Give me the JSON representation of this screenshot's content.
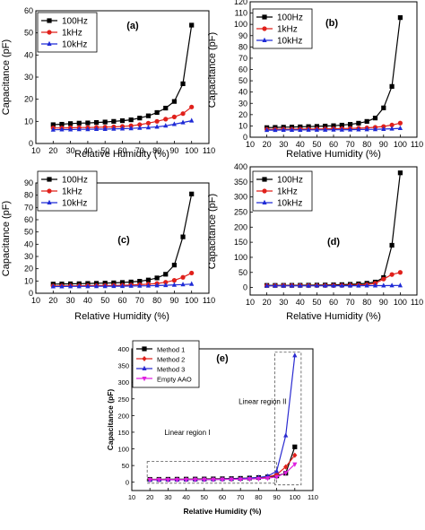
{
  "colors": {
    "100Hz": "#000000",
    "1kHz": "#e0201b",
    "10kHz": "#1f2bd6",
    "m1": "#000000",
    "m2": "#e0201b",
    "m3": "#2a2ad0",
    "aao": "#e020e0"
  },
  "chart_data": [
    {
      "id": "a",
      "type": "line",
      "panel_label": "(a)",
      "xlabel": "Relative Humidity (%)",
      "ylabel": "Capacitance (pF)",
      "xlim": [
        10,
        110
      ],
      "ylim": [
        0,
        60
      ],
      "xticks": [
        10,
        20,
        30,
        40,
        50,
        60,
        70,
        80,
        90,
        100,
        110
      ],
      "yticks": [
        0,
        10,
        20,
        30,
        40,
        50,
        60
      ],
      "legend_position": "top-left",
      "x": [
        20,
        25,
        30,
        35,
        40,
        45,
        50,
        55,
        60,
        65,
        70,
        75,
        80,
        85,
        90,
        95,
        100
      ],
      "series": [
        {
          "name": "100Hz",
          "color_key": "100Hz",
          "marker": "square",
          "values": [
            8.5,
            8.7,
            9,
            9.2,
            9.3,
            9.5,
            9.7,
            10,
            10.3,
            10.7,
            11.5,
            12.5,
            14,
            16,
            19,
            27,
            53.5
          ]
        },
        {
          "name": "1kHz",
          "color_key": "1kHz",
          "marker": "circle",
          "values": [
            7,
            7,
            7.1,
            7.2,
            7.2,
            7.3,
            7.4,
            7.5,
            7.7,
            8,
            8.5,
            9.2,
            10,
            11,
            12,
            13.5,
            16.5
          ]
        },
        {
          "name": "10kHz",
          "color_key": "10kHz",
          "marker": "triangle",
          "values": [
            6.2,
            6.3,
            6.3,
            6.4,
            6.4,
            6.5,
            6.5,
            6.6,
            6.7,
            6.8,
            7,
            7.2,
            7.5,
            8,
            8.7,
            9.5,
            10.3
          ]
        }
      ]
    },
    {
      "id": "b",
      "type": "line",
      "panel_label": "(b)",
      "xlabel": "Relative Humidity (%)",
      "ylabel": "Capacitance (pF)",
      "xlim": [
        10,
        110
      ],
      "ylim": [
        0,
        120
      ],
      "xticks": [
        10,
        20,
        30,
        40,
        50,
        60,
        70,
        80,
        90,
        100,
        110
      ],
      "yticks": [
        0,
        10,
        20,
        30,
        40,
        50,
        60,
        70,
        80,
        90,
        100,
        110,
        120
      ],
      "legend_position": "top-left",
      "x": [
        20,
        25,
        30,
        35,
        40,
        45,
        50,
        55,
        60,
        65,
        70,
        75,
        80,
        85,
        90,
        95,
        100
      ],
      "series": [
        {
          "name": "100Hz",
          "color_key": "100Hz",
          "marker": "square",
          "values": [
            8.5,
            8.7,
            8.9,
            9,
            9.2,
            9.4,
            9.6,
            9.9,
            10.2,
            10.7,
            11.4,
            12.4,
            14,
            17,
            26,
            45,
            106
          ]
        },
        {
          "name": "1kHz",
          "color_key": "1kHz",
          "marker": "circle",
          "values": [
            7,
            7,
            7.1,
            7.1,
            7.2,
            7.2,
            7.3,
            7.4,
            7.5,
            7.6,
            7.8,
            8,
            8.3,
            8.8,
            9.5,
            10.8,
            12.5
          ]
        },
        {
          "name": "10kHz",
          "color_key": "10kHz",
          "marker": "triangle",
          "values": [
            6.3,
            6.3,
            6.4,
            6.4,
            6.4,
            6.5,
            6.5,
            6.5,
            6.6,
            6.6,
            6.7,
            6.8,
            6.9,
            7,
            7.2,
            7.5,
            7.9
          ]
        }
      ]
    },
    {
      "id": "c",
      "type": "line",
      "panel_label": "(c)",
      "xlabel": "Relative Humidity (%)",
      "ylabel": "Capacitance (pF)",
      "xlim": [
        10,
        110
      ],
      "ylim": [
        0,
        90
      ],
      "xticks": [
        10,
        20,
        30,
        40,
        50,
        60,
        70,
        80,
        90,
        100,
        110
      ],
      "yticks": [
        0,
        10,
        20,
        30,
        40,
        50,
        60,
        70,
        80,
        90
      ],
      "legend_position": "top-left",
      "x": [
        20,
        25,
        30,
        35,
        40,
        45,
        50,
        55,
        60,
        65,
        70,
        75,
        80,
        85,
        90,
        95,
        100
      ],
      "series": [
        {
          "name": "100Hz",
          "color_key": "100Hz",
          "marker": "square",
          "values": [
            7.5,
            7.6,
            7.7,
            7.8,
            8,
            8.1,
            8.3,
            8.5,
            8.8,
            9.2,
            9.8,
            10.8,
            12.5,
            15.5,
            23,
            46,
            81
          ]
        },
        {
          "name": "1kHz",
          "color_key": "1kHz",
          "marker": "circle",
          "values": [
            6,
            6,
            6.1,
            6.1,
            6.2,
            6.2,
            6.3,
            6.4,
            6.5,
            6.7,
            7,
            7.4,
            8,
            9,
            10.5,
            13,
            16.5
          ]
        },
        {
          "name": "10kHz",
          "color_key": "10kHz",
          "marker": "triangle",
          "values": [
            5.5,
            5.5,
            5.6,
            5.6,
            5.6,
            5.7,
            5.7,
            5.8,
            5.8,
            5.9,
            6,
            6.1,
            6.3,
            6.5,
            6.8,
            7.1,
            7.5
          ]
        }
      ]
    },
    {
      "id": "d",
      "type": "line",
      "panel_label": "(d)",
      "xlabel": "Relative Humidity (%)",
      "ylabel": "Capacitance (pF)",
      "xlim": [
        10,
        110
      ],
      "ylim": [
        -25,
        400
      ],
      "xticks": [
        10,
        20,
        30,
        40,
        50,
        60,
        70,
        80,
        90,
        100,
        110
      ],
      "yticks": [
        0,
        50,
        100,
        150,
        200,
        250,
        300,
        350,
        400
      ],
      "legend_position": "top-left",
      "x": [
        20,
        25,
        30,
        35,
        40,
        45,
        50,
        55,
        60,
        65,
        70,
        75,
        80,
        85,
        90,
        95,
        100
      ],
      "series": [
        {
          "name": "100Hz",
          "color_key": "100Hz",
          "marker": "square",
          "values": [
            7,
            7,
            7.2,
            7.3,
            7.5,
            7.7,
            8,
            8.3,
            8.8,
            9.5,
            10.5,
            12,
            14,
            18,
            33,
            140,
            380
          ]
        },
        {
          "name": "1kHz",
          "color_key": "1kHz",
          "marker": "circle",
          "values": [
            6,
            6,
            6.1,
            6.1,
            6.2,
            6.2,
            6.3,
            6.4,
            6.6,
            6.9,
            7.3,
            8,
            9.5,
            14,
            28,
            43,
            50
          ]
        },
        {
          "name": "10kHz",
          "color_key": "10kHz",
          "marker": "triangle",
          "values": [
            5.5,
            5.5,
            5.5,
            5.6,
            5.6,
            5.6,
            5.7,
            5.7,
            5.8,
            5.8,
            5.9,
            6,
            6.1,
            6.2,
            6.3,
            6.5,
            6.7
          ]
        }
      ]
    },
    {
      "id": "e",
      "type": "line",
      "panel_label": "(e)",
      "xlabel": "Relative Humidity (%)",
      "ylabel": "Capacitance (pF)",
      "xlim": [
        10,
        110
      ],
      "ylim": [
        -25,
        400
      ],
      "xticks": [
        10,
        20,
        30,
        40,
        50,
        60,
        70,
        80,
        90,
        100,
        110
      ],
      "yticks": [
        0,
        50,
        100,
        150,
        200,
        250,
        300,
        350,
        400
      ],
      "legend_position": "top-left",
      "x": [
        20,
        25,
        30,
        35,
        40,
        45,
        50,
        55,
        60,
        65,
        70,
        75,
        80,
        85,
        90,
        95,
        100
      ],
      "series": [
        {
          "name": "Method 1",
          "color_key": "m1",
          "marker": "square",
          "values": [
            8.5,
            8.6,
            8.8,
            9,
            9.2,
            9.4,
            9.6,
            9.9,
            10.3,
            10.7,
            11.5,
            12.5,
            14,
            16,
            19,
            27,
            106
          ]
        },
        {
          "name": "Method 2",
          "color_key": "m2",
          "marker": "diamond",
          "values": [
            7.5,
            7.6,
            7.7,
            7.8,
            8,
            8.1,
            8.3,
            8.5,
            8.8,
            9.2,
            9.8,
            10.8,
            12.5,
            15.5,
            23,
            46,
            81
          ]
        },
        {
          "name": "Method 3",
          "color_key": "m3",
          "marker": "triangle",
          "values": [
            7,
            7,
            7.2,
            7.3,
            7.5,
            7.7,
            8,
            8.3,
            8.8,
            9.5,
            10.5,
            12,
            14,
            18,
            33,
            140,
            380
          ]
        },
        {
          "name": "Empty AAO",
          "color_key": "aao",
          "marker": "triangle-down",
          "values": [
            7.5,
            7.5,
            7.6,
            7.6,
            7.7,
            7.8,
            7.9,
            8,
            8.2,
            8.5,
            8.9,
            9.5,
            10.5,
            12,
            16,
            28,
            54
          ]
        }
      ],
      "annotations": [
        "Linear region I",
        "Linear region II"
      ]
    }
  ]
}
